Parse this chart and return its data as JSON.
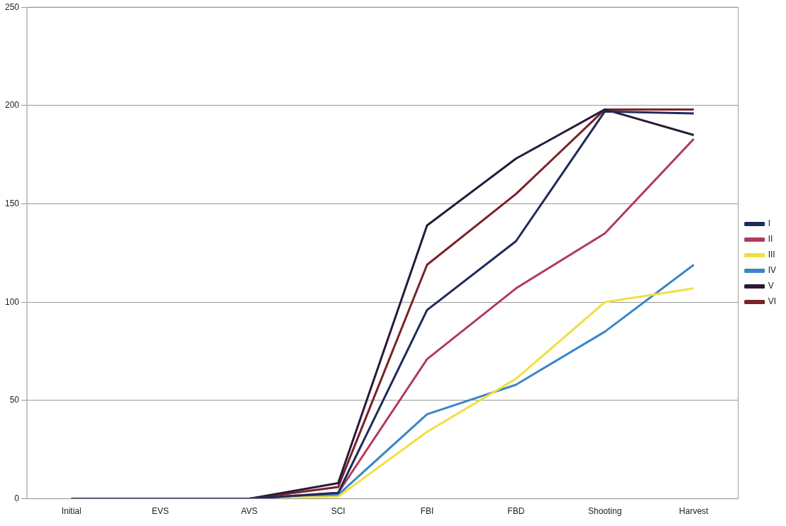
{
  "chart_data": {
    "type": "line",
    "categories": [
      "Initial",
      "EVS",
      "AVS",
      "SCI",
      "FBI",
      "FBD",
      "Shooting",
      "Harvest"
    ],
    "series": [
      {
        "name": "I",
        "color": "#1f2a5c",
        "values": [
          0,
          0,
          0,
          3,
          96,
          131,
          197,
          196
        ]
      },
      {
        "name": "II",
        "color": "#b03a5a",
        "values": [
          0,
          0,
          0,
          3,
          71,
          107,
          135,
          183
        ]
      },
      {
        "name": "III",
        "color": "#f0e040",
        "values": [
          0,
          0,
          0,
          1,
          34,
          61,
          100,
          107
        ]
      },
      {
        "name": "IV",
        "color": "#3a86c8",
        "values": [
          null,
          null,
          0,
          2,
          43,
          58,
          85,
          119
        ]
      },
      {
        "name": "V",
        "color": "#2a1a38",
        "values": [
          0,
          0,
          0,
          8,
          139,
          173,
          198,
          185
        ]
      },
      {
        "name": "VI",
        "color": "#7a2228",
        "values": [
          0,
          0,
          0,
          6,
          119,
          155,
          198,
          198
        ]
      }
    ],
    "ylim": [
      0,
      250
    ],
    "yticks": [
      0,
      50,
      100,
      150,
      200,
      250
    ],
    "grid": "y",
    "legend": "right",
    "marker": "none",
    "line_style": "solid"
  }
}
